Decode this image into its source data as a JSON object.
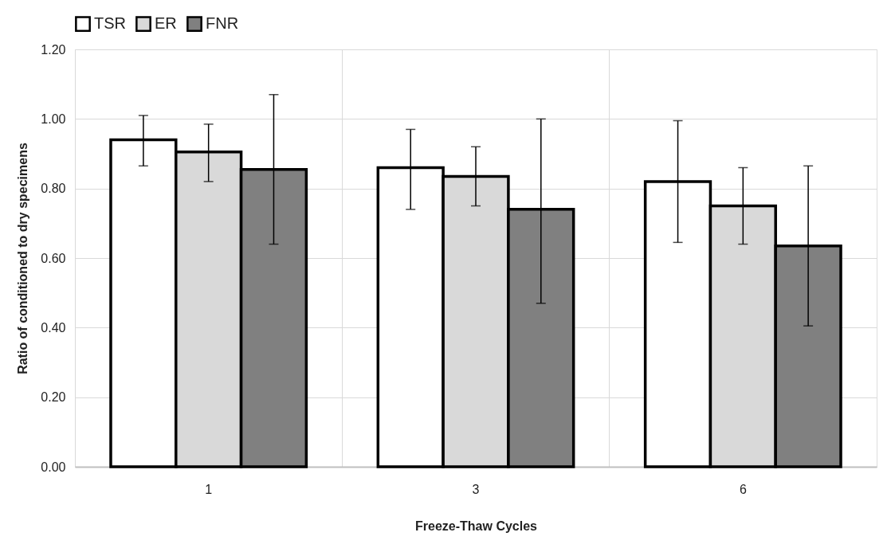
{
  "chart_data": {
    "type": "bar",
    "xlabel": "Freeze-Thaw Cycles",
    "ylabel": "Ratio of conditioned to dry specimens",
    "categories": [
      "1",
      "3",
      "6"
    ],
    "series": [
      {
        "name": "TSR",
        "color": "#ffffff",
        "values": [
          0.94,
          0.86,
          0.82
        ],
        "errors": [
          [
            0.865,
            1.01
          ],
          [
            0.74,
            0.97
          ],
          [
            0.645,
            0.995
          ]
        ]
      },
      {
        "name": "ER",
        "color": "#d9d9d9",
        "values": [
          0.905,
          0.835,
          0.75
        ],
        "errors": [
          [
            0.82,
            0.985
          ],
          [
            0.75,
            0.92
          ],
          [
            0.64,
            0.86
          ]
        ]
      },
      {
        "name": "FNR",
        "color": "#808080",
        "values": [
          0.855,
          0.74,
          0.635
        ],
        "errors": [
          [
            0.64,
            1.07
          ],
          [
            0.47,
            1.0
          ],
          [
            0.405,
            0.865
          ]
        ]
      }
    ],
    "ylim": [
      0,
      1.2
    ],
    "yticks": [
      {
        "value": 0,
        "label": "0.00"
      },
      {
        "value": 0.2,
        "label": "0.20"
      },
      {
        "value": 0.4,
        "label": "0.40"
      },
      {
        "value": 0.6,
        "label": "0.60"
      },
      {
        "value": 0.8,
        "label": "0.80"
      },
      {
        "value": 1.0,
        "label": "1.00"
      },
      {
        "value": 1.2,
        "label": "1.20"
      }
    ],
    "grid": true,
    "legend": "top"
  }
}
